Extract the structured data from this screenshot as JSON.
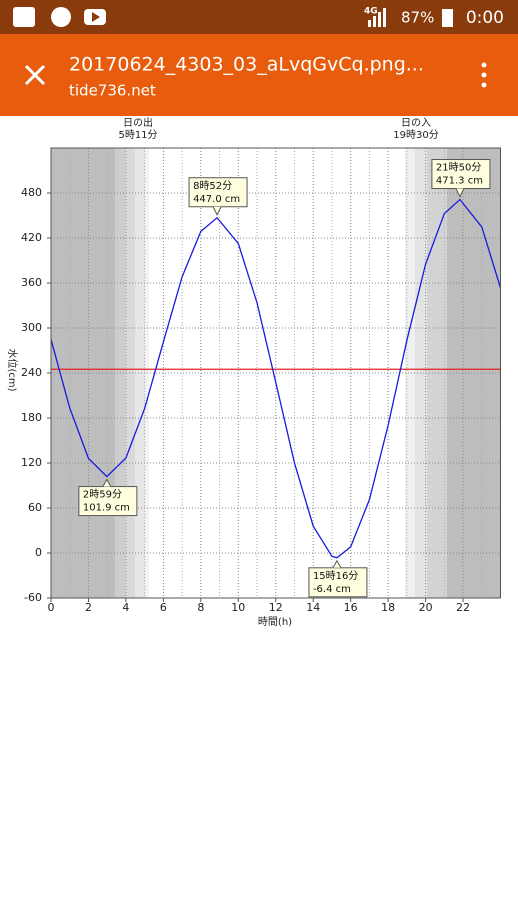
{
  "status_bar": {
    "network": "4G",
    "battery": "87%",
    "time": "0:00"
  },
  "app_bar": {
    "title": "20170624_4303_03_aLvqGvCq.png...",
    "subtitle": "tide736.net"
  },
  "chart_data": {
    "type": "line",
    "sunrise": {
      "label": "日の出",
      "time": "5時11分"
    },
    "sunset": {
      "label": "日の入",
      "time": "19時30分"
    },
    "x_label": "時間(h)",
    "y_label": "水位(cm)",
    "x": [
      0,
      1,
      2,
      2.983,
      4,
      5,
      6,
      7,
      8,
      8.867,
      10,
      11,
      12,
      13,
      14,
      15,
      15.267,
      16,
      17,
      18,
      19,
      20,
      21,
      21.833,
      23,
      24
    ],
    "series": [
      {
        "name": "水位",
        "color": "#1a1adc",
        "values": [
          284.7,
          193.4,
          126.2,
          101.9,
          126.7,
          192.7,
          281.4,
          368.2,
          428.8,
          447.0,
          412.7,
          333.6,
          227.7,
          120.1,
          35.9,
          -4.4,
          -6.4,
          8.2,
          71.1,
          170.3,
          283.4,
          385.1,
          452.5,
          471.3,
          434.7,
          353.5
        ]
      }
    ],
    "reference_line": {
      "value": 245,
      "color": "#e02020"
    },
    "annotations": [
      {
        "time": "2時59分",
        "level": "101.9 cm",
        "x": 2.983,
        "y": 101.9
      },
      {
        "time": "8時52分",
        "level": "447.0 cm",
        "x": 8.867,
        "y": 447.0
      },
      {
        "time": "15時16分",
        "level": "-6.4 cm",
        "x": 15.267,
        "y": -6.4
      },
      {
        "time": "21時50分",
        "level": "471.3 cm",
        "x": 21.833,
        "y": 471.3
      }
    ],
    "xlim": [
      0,
      24
    ],
    "xticks": [
      0,
      2,
      4,
      6,
      8,
      10,
      12,
      14,
      16,
      18,
      20,
      22
    ],
    "xminorticks": [
      1,
      3,
      5,
      7,
      9,
      11,
      13,
      15,
      17,
      19,
      21,
      23
    ],
    "ylim": [
      -60,
      540
    ],
    "yticks": [
      -60,
      0,
      60,
      120,
      180,
      240,
      300,
      360,
      420,
      480
    ],
    "grid": true
  }
}
